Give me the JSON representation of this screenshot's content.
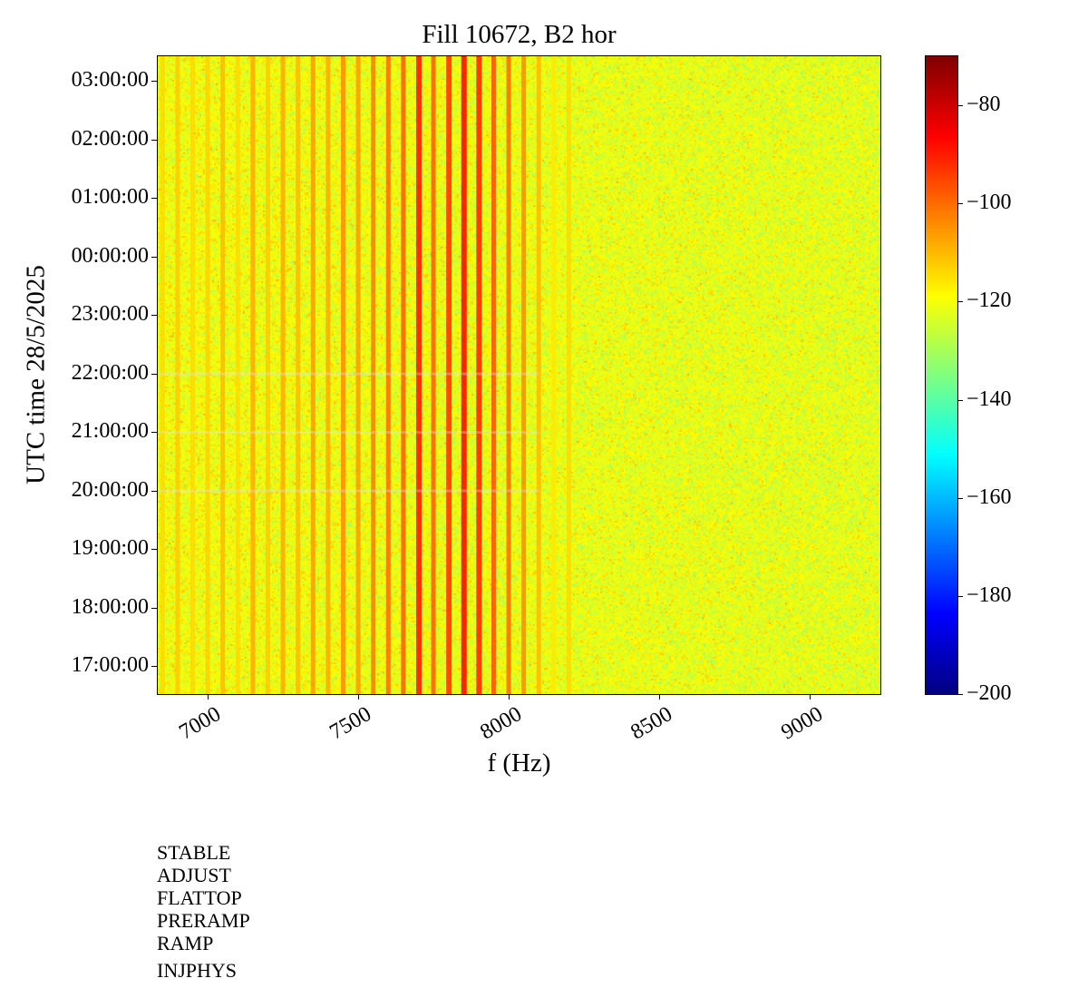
{
  "chart_data": {
    "type": "heatmap",
    "title": "Fill 10672, B2 hor",
    "xlabel": "f (Hz)",
    "ylabel": "UTC time 28/5/2025",
    "xlim": [
      6834,
      9235
    ],
    "x_ticks": [
      7000,
      7500,
      8000,
      8500,
      9000
    ],
    "y_ticks": [
      "03:00:00",
      "02:00:00",
      "01:00:00",
      "00:00:00",
      "23:00:00",
      "22:00:00",
      "21:00:00",
      "20:00:00",
      "19:00:00",
      "18:00:00",
      "17:00:00"
    ],
    "y_range_hours": [
      16.52,
      27.42
    ],
    "colormap": "jet",
    "colorbar": {
      "range": [
        -200,
        -70
      ],
      "ticks": [
        -80,
        -100,
        -120,
        -140,
        -160,
        -180,
        -200
      ]
    },
    "background_level_db": -120,
    "harmonics": {
      "frequencies_hz": [
        6850,
        6900,
        6950,
        7000,
        7050,
        7100,
        7150,
        7200,
        7250,
        7300,
        7350,
        7400,
        7450,
        7500,
        7550,
        7600,
        7650,
        7700,
        7750,
        7800,
        7850,
        7900,
        7950,
        8000,
        8050,
        8100,
        8150,
        8200
      ],
      "levels_db": [
        -114,
        -112,
        -114,
        -113,
        -110,
        -114,
        -108,
        -112,
        -108,
        -110,
        -106,
        -108,
        -104,
        -106,
        -102,
        -100,
        -98,
        -88,
        -98,
        -92,
        -86,
        -90,
        -96,
        -100,
        -104,
        -110,
        -116,
        -114
      ]
    },
    "disturbances_utc": [
      "20:00:00",
      "21:00:00",
      "22:00:00"
    ]
  },
  "beam_modes": [
    "STABLE",
    "ADJUST",
    "FLATTOP",
    "PRERAMP",
    "RAMP",
    "INJPHYS"
  ]
}
